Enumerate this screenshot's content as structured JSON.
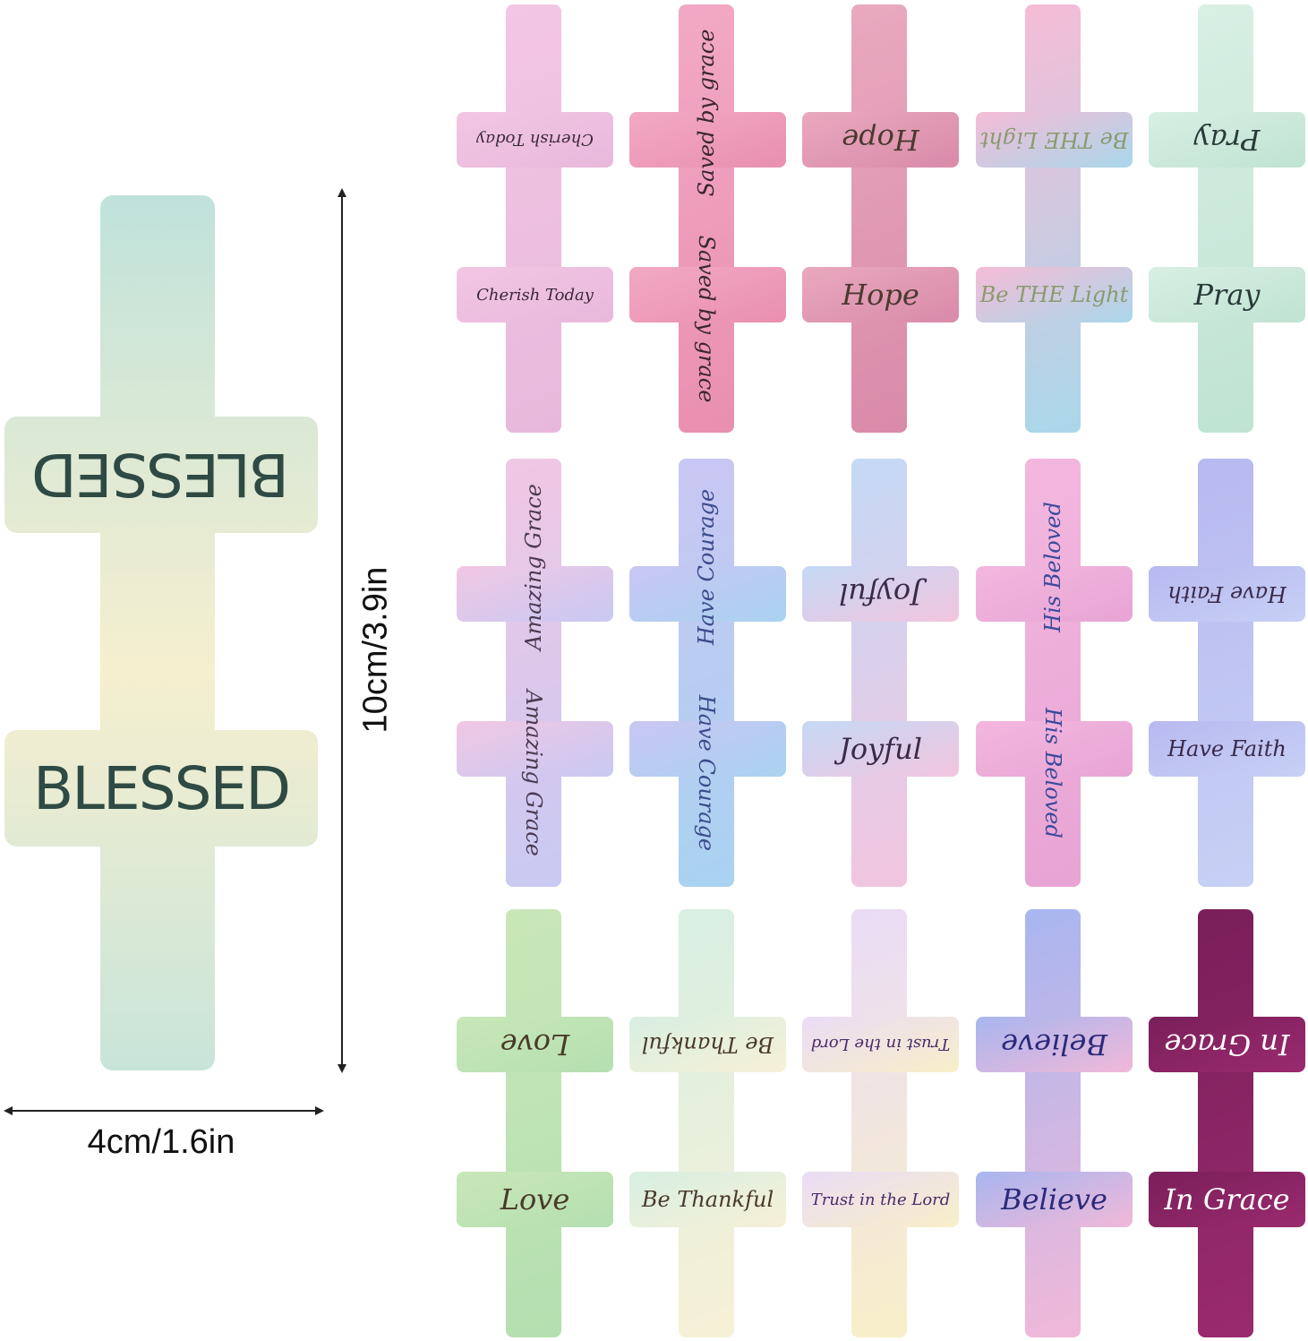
{
  "large_sample": {
    "label": "BLESSED",
    "colors": [
      "#a9dde0",
      "#f6efcf"
    ]
  },
  "dimensions": {
    "height_label": "10cm/3.9in",
    "width_label": "4cm/1.6in"
  },
  "crosses": [
    {
      "label": "Cherish Today",
      "vertical": false,
      "colors": [
        "#f3c6e3",
        "#e8b8dc"
      ],
      "text_color": "#3a2a3a"
    },
    {
      "label": "Saved by grace",
      "vertical": true,
      "colors": [
        "#f2a9c4",
        "#e98fb0"
      ],
      "text_color": "#3a2630"
    },
    {
      "label": "Hope",
      "vertical": false,
      "colors": [
        "#e9a9bf",
        "#d98aa8"
      ],
      "text_color": "#4a3a30"
    },
    {
      "label": "Be THE Light",
      "vertical": false,
      "colors": [
        "#f6bcd6",
        "#a9d7ea"
      ],
      "text_color": "#8a9a70"
    },
    {
      "label": "Pray",
      "vertical": false,
      "colors": [
        "#d8efe4",
        "#bfe3d3"
      ],
      "text_color": "#2a3a3a"
    },
    {
      "label": "Amazing Grace",
      "vertical": true,
      "colors": [
        "#f1c7e3",
        "#c8c9f3"
      ],
      "text_color": "#4a3a50"
    },
    {
      "label": "Have Courage",
      "vertical": true,
      "colors": [
        "#c9c6f2",
        "#a9d2f1"
      ],
      "text_color": "#3a4a8a"
    },
    {
      "label": "Joyful",
      "vertical": false,
      "colors": [
        "#c4d9f5",
        "#f2c4de"
      ],
      "text_color": "#3a2a4a"
    },
    {
      "label": "His Beloved",
      "vertical": true,
      "colors": [
        "#f3b7df",
        "#e8a4d4"
      ],
      "text_color": "#3a4a9a"
    },
    {
      "label": "Have Faith",
      "vertical": false,
      "colors": [
        "#b8b9f0",
        "#c7d0f5"
      ],
      "text_color": "#3a2a4a"
    },
    {
      "label": "Love",
      "vertical": false,
      "colors": [
        "#c9e7b9",
        "#b4dfb0"
      ],
      "text_color": "#4a3a2a"
    },
    {
      "label": "Be Thankful",
      "vertical": false,
      "colors": [
        "#d7efe2",
        "#f7f0d6"
      ],
      "text_color": "#4a3a2a"
    },
    {
      "label": "Trust in the Lord",
      "vertical": false,
      "colors": [
        "#eadcf6",
        "#f8efc8"
      ],
      "text_color": "#4a2a6a"
    },
    {
      "label": "Believe",
      "vertical": false,
      "colors": [
        "#a8b6ef",
        "#f1b8d8"
      ],
      "text_color": "#2a2a7a"
    },
    {
      "label": "In Grace",
      "vertical": false,
      "colors": [
        "#7a1f5a",
        "#9a2a6e"
      ],
      "text_color": "#ffffff"
    }
  ]
}
